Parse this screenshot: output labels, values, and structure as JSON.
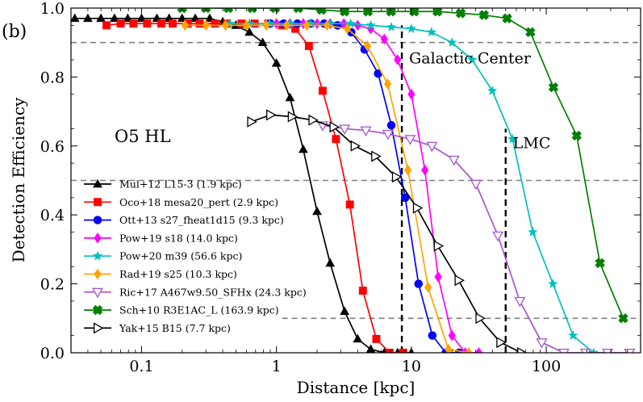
{
  "panel_label": "(b)",
  "chart_data": {
    "type": "line",
    "title": "",
    "xlabel": "Distance [kpc]",
    "ylabel": "Detection Efficiency",
    "xscale": "log",
    "xlim": [
      0.03,
      500
    ],
    "ylim": [
      0,
      1.0
    ],
    "xticks": [
      {
        "value": 0.1,
        "label": "0.1"
      },
      {
        "value": 1,
        "label": "1"
      },
      {
        "value": 10,
        "label": "10"
      },
      {
        "value": 100,
        "label": "100"
      }
    ],
    "yticks": [
      {
        "value": 0,
        "label": "0.0"
      },
      {
        "value": 0.2,
        "label": "0.2"
      },
      {
        "value": 0.4,
        "label": "0.4"
      },
      {
        "value": 0.6,
        "label": "0.6"
      },
      {
        "value": 0.8,
        "label": "0.8"
      },
      {
        "value": 1.0,
        "label": "1.0"
      }
    ],
    "grid": false,
    "legend_position": "bottom-left",
    "annotation_text": "O5 HL",
    "reference_lines": {
      "horizontal": [
        {
          "y": 0.9,
          "x_from": 0.03,
          "x_to": 500
        },
        {
          "y": 0.5,
          "x_from": 0.03,
          "x_to": 500
        },
        {
          "y": 0.1,
          "x_from": 1.1,
          "x_to": 500
        }
      ],
      "vertical": [
        {
          "x": 8.5,
          "y_to": 0.95,
          "label": "Galactic Center"
        },
        {
          "x": 50,
          "y_to": 0.65,
          "label": "LMC"
        }
      ]
    },
    "series": [
      {
        "name": "Mul+12 L15-3 (1.9 kpc)",
        "color": "#000000",
        "marker": "triangle-up",
        "x": [
          0.032,
          0.04,
          0.05,
          0.063,
          0.079,
          0.1,
          0.13,
          0.16,
          0.2,
          0.25,
          0.32,
          0.4,
          0.5,
          0.63,
          0.79,
          1.0,
          1.26,
          1.58,
          2.0,
          2.5,
          3.2,
          4.0,
          5.0,
          6.3,
          7.9,
          10
        ],
        "y": [
          0.97,
          0.97,
          0.97,
          0.97,
          0.97,
          0.97,
          0.97,
          0.97,
          0.97,
          0.97,
          0.97,
          0.96,
          0.95,
          0.93,
          0.9,
          0.84,
          0.74,
          0.59,
          0.41,
          0.26,
          0.12,
          0.04,
          0.01,
          0.0,
          0.0,
          0.0
        ]
      },
      {
        "name": "Oco+18 mesa20_pert (2.9 kpc)",
        "color": "#ff0000",
        "marker": "square",
        "x": [
          0.055,
          0.07,
          0.087,
          0.11,
          0.14,
          0.17,
          0.22,
          0.27,
          0.35,
          0.43,
          0.55,
          0.69,
          0.87,
          1.1,
          1.38,
          1.74,
          2.2,
          2.76,
          3.5,
          4.37,
          5.5,
          6.9,
          8.7
        ],
        "y": [
          0.95,
          0.955,
          0.955,
          0.955,
          0.955,
          0.955,
          0.955,
          0.955,
          0.955,
          0.955,
          0.955,
          0.955,
          0.955,
          0.95,
          0.94,
          0.89,
          0.76,
          0.62,
          0.43,
          0.18,
          0.04,
          0.0,
          0.0
        ]
      },
      {
        "name": "Ott+13 s27_fheat1d15 (9.3 kpc)",
        "color": "#0000ff",
        "marker": "circle",
        "x": [
          0.9,
          1.13,
          1.43,
          1.8,
          2.26,
          2.84,
          3.58,
          4.5,
          5.67,
          7.1,
          9.0,
          11.3,
          14.3,
          18.0,
          22.6
        ],
        "y": [
          0.955,
          0.955,
          0.955,
          0.955,
          0.955,
          0.95,
          0.93,
          0.88,
          0.81,
          0.66,
          0.45,
          0.2,
          0.05,
          0.0,
          0.0
        ]
      },
      {
        "name": "Pow+19 s18 (14.0 kpc)",
        "color": "#ff00ff",
        "marker": "diamond",
        "x": [
          1.0,
          1.26,
          1.58,
          2.0,
          2.5,
          3.16,
          4.0,
          5.0,
          6.3,
          7.9,
          10.0,
          12.6,
          15.8,
          20.0,
          25.1,
          31.6
        ],
        "y": [
          0.955,
          0.955,
          0.955,
          0.955,
          0.955,
          0.955,
          0.95,
          0.94,
          0.91,
          0.85,
          0.75,
          0.53,
          0.22,
          0.05,
          0.0,
          0.0
        ]
      },
      {
        "name": "Pow+20 m39 (56.6 kpc)",
        "color": "#00bfbf",
        "marker": "star",
        "x": [
          0.45,
          0.63,
          0.89,
          1.26,
          1.78,
          2.5,
          3.55,
          5.0,
          7.1,
          10.0,
          14.1,
          20.0,
          28.2,
          39.8,
          56.2,
          79.4,
          112,
          158,
          224
        ],
        "y": [
          0.955,
          0.955,
          0.955,
          0.955,
          0.955,
          0.955,
          0.955,
          0.95,
          0.945,
          0.94,
          0.93,
          0.9,
          0.85,
          0.76,
          0.62,
          0.35,
          0.2,
          0.05,
          0.0
        ]
      },
      {
        "name": "Rad+19 s25 (10.3 kpc)",
        "color": "#ffa500",
        "marker": "diamond",
        "x": [
          0.21,
          0.3,
          0.42,
          0.6,
          0.84,
          1.19,
          1.68,
          2.37,
          3.35,
          4.73,
          6.68,
          9.43,
          13.3,
          18.8,
          26.6
        ],
        "y": [
          0.95,
          0.95,
          0.95,
          0.95,
          0.95,
          0.95,
          0.95,
          0.95,
          0.94,
          0.89,
          0.78,
          0.53,
          0.19,
          0.01,
          0.0
        ]
      },
      {
        "name": "Ric+17 A467w9.50_SFHx (24.3 kpc)",
        "color": "#a855cc",
        "marker": "triangle-down",
        "x": [
          2.2,
          3.2,
          4.6,
          6.7,
          9.8,
          14.2,
          20.7,
          30.1,
          43.8,
          63.7,
          92.6,
          135,
          196,
          285,
          414
        ],
        "y": [
          0.66,
          0.65,
          0.645,
          0.635,
          0.62,
          0.6,
          0.56,
          0.49,
          0.34,
          0.15,
          0.03,
          0.0,
          0.0,
          0.0,
          0.0
        ]
      },
      {
        "name": "Sch+10 R3E1AC_L (163.9 kpc)",
        "color": "#008000",
        "marker": "x",
        "x": [
          0.2,
          0.3,
          0.44,
          0.66,
          0.98,
          1.45,
          2.16,
          3.2,
          4.76,
          7.07,
          10.5,
          15.6,
          23.2,
          34.5,
          51.3,
          76.2,
          113,
          168,
          250,
          372
        ],
        "y": [
          1.0,
          1.0,
          1.0,
          1.0,
          1.0,
          1.0,
          0.995,
          0.99,
          0.99,
          0.99,
          0.99,
          0.99,
          0.985,
          0.98,
          0.97,
          0.93,
          0.77,
          0.63,
          0.26,
          0.1
        ]
      },
      {
        "name": "Yak+15 B15 (7.7 kpc)",
        "color": "#000000",
        "marker": "triangle-right",
        "x": [
          0.65,
          0.9,
          1.3,
          1.85,
          2.65,
          3.8,
          5.4,
          7.7,
          11.0,
          15.7,
          22.4,
          32.0,
          45.7,
          65.3
        ],
        "y": [
          0.67,
          0.69,
          0.685,
          0.675,
          0.655,
          0.6,
          0.57,
          0.51,
          0.42,
          0.31,
          0.21,
          0.1,
          0.03,
          0.0
        ]
      }
    ]
  }
}
